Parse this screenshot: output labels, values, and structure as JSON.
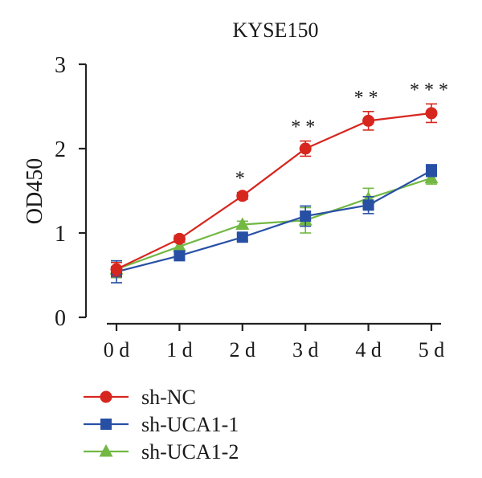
{
  "chart_data": {
    "type": "line",
    "title": "KYSE150",
    "xlabel": "",
    "ylabel": "OD450",
    "categories": [
      "0 d",
      "1 d",
      "2 d",
      "3 d",
      "4 d",
      "5 d"
    ],
    "yticks": [
      "0",
      "1",
      "2",
      "3"
    ],
    "ylim": [
      0,
      3
    ],
    "grid": false,
    "legend_position": "bottom-left",
    "series": [
      {
        "name": "sh-NC",
        "color": "#d7261e",
        "marker": "circle",
        "values": [
          0.57,
          0.93,
          1.44,
          2.0,
          2.33,
          2.42
        ],
        "errors": [
          0.08,
          0.04,
          0.04,
          0.09,
          0.11,
          0.11
        ]
      },
      {
        "name": "sh-UCA1-1",
        "color": "#2750a5",
        "marker": "square",
        "values": [
          0.54,
          0.73,
          0.95,
          1.2,
          1.33,
          1.74
        ],
        "errors": [
          0.13,
          0.04,
          0.04,
          0.12,
          0.1,
          0.07
        ]
      },
      {
        "name": "sh-UCA1-2",
        "color": "#72b843",
        "marker": "triangle",
        "values": [
          0.57,
          0.84,
          1.1,
          1.15,
          1.41,
          1.65
        ],
        "errors": [
          0.1,
          0.05,
          0.04,
          0.15,
          0.12,
          0.07
        ]
      }
    ],
    "annotations": [
      "",
      "",
      "*",
      "**",
      "**",
      "***"
    ]
  }
}
